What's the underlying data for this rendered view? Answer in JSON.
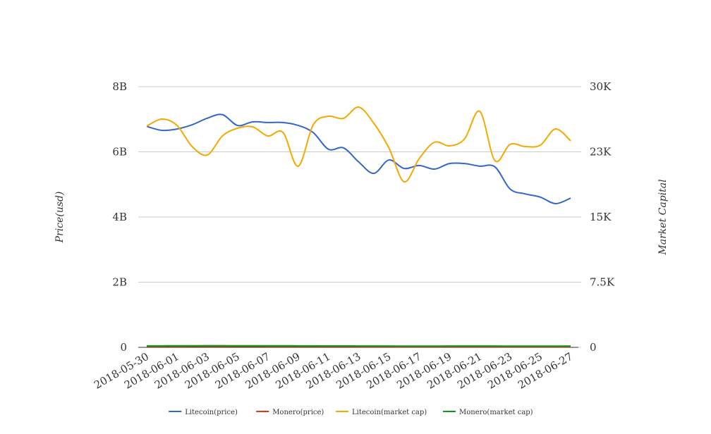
{
  "chart_data": {
    "type": "line",
    "categories": [
      "2018-05-30",
      null,
      "2018-06-01",
      null,
      "2018-06-03",
      null,
      "2018-06-05",
      null,
      "2018-06-07",
      null,
      "2018-06-09",
      null,
      "2018-06-11",
      null,
      "2018-06-13",
      null,
      "2018-06-15",
      null,
      "2018-06-17",
      null,
      "2018-06-19",
      null,
      "2018-06-21",
      null,
      "2018-06-23",
      null,
      "2018-06-25",
      null,
      "2018-06-27"
    ],
    "y_label": "Price(usd)",
    "y2_label": "Market Capital",
    "ylim": [
      0,
      8000000000
    ],
    "yticks": [
      0,
      {
        "value": 2000000000,
        "label": "2B"
      },
      {
        "value": 4000000000,
        "label": "4B"
      },
      {
        "value": 6000000000,
        "label": "6B"
      },
      {
        "value": 8000000000,
        "label": "8B"
      }
    ],
    "y2lim": [
      0,
      30000
    ],
    "y2ticks": [
      0,
      {
        "value": 7500,
        "label": "7.5K"
      },
      {
        "value": 15000,
        "label": "15K"
      },
      {
        "value": 22500,
        "label": "23K"
      },
      {
        "value": 30000,
        "label": "30K"
      }
    ],
    "grid": true,
    "legend": "bottom",
    "series": [
      {
        "name": "Litecoin(price)",
        "color": "#3366cc",
        "values": [
          6780000000,
          6660000000,
          6700000000,
          6830000000,
          7030000000,
          7140000000,
          6810000000,
          6920000000,
          6900000000,
          6900000000,
          6810000000,
          6590000000,
          6080000000,
          6120000000,
          5690000000,
          5340000000,
          5750000000,
          5490000000,
          5580000000,
          5470000000,
          5640000000,
          5640000000,
          5560000000,
          5540000000,
          4860000000,
          4710000000,
          4610000000,
          4410000000,
          4580000000
        ]
      },
      {
        "name": "Monero(price)",
        "color": "#dc3912",
        "values": [
          30000000,
          30000000,
          30000000,
          32000000,
          33000000,
          33000000,
          32000000,
          32000000,
          31000000,
          31000000,
          30000000,
          29000000,
          27000000,
          27000000,
          26000000,
          25000000,
          25000000,
          24000000,
          24000000,
          24000000,
          25000000,
          25000000,
          25000000,
          25000000,
          24000000,
          24000000,
          24000000,
          24000000,
          25000000
        ]
      },
      {
        "name": "Litecoin(market cap)",
        "color": "#f4a900",
        "axis": "y2",
        "values": [
          25459,
          26270,
          25540,
          23108,
          22135,
          24324,
          25216,
          25378,
          24324,
          24730,
          20838,
          25621,
          26594,
          26351,
          27648,
          25783,
          22946,
          19054,
          21730,
          23595,
          23189,
          24000,
          27162,
          21486,
          23351,
          23108,
          23270,
          25135,
          23757
        ]
      },
      {
        "name": "Monero(market cap)",
        "color": "#109618",
        "axis": "y2",
        "values": [
          170,
          175,
          180,
          185,
          190,
          190,
          185,
          185,
          180,
          180,
          175,
          170,
          160,
          160,
          155,
          150,
          150,
          145,
          145,
          145,
          150,
          150,
          150,
          150,
          145,
          145,
          145,
          145,
          150
        ]
      }
    ]
  }
}
